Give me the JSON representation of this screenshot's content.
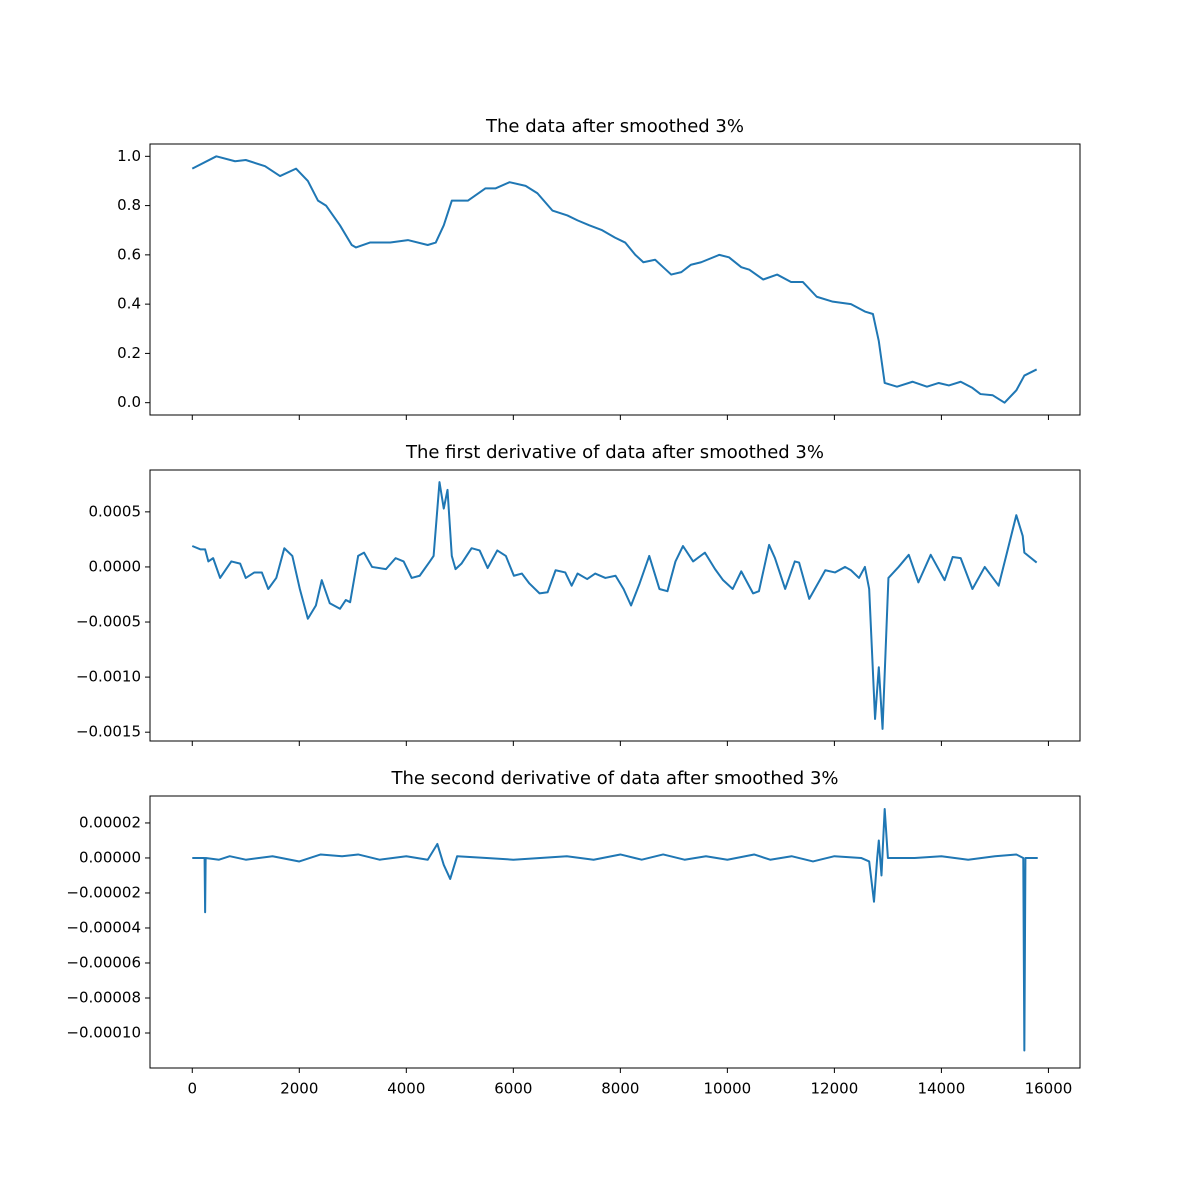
{
  "chart_data": [
    {
      "type": "line",
      "title": "The data after smoothed 3%",
      "color": "#1f77b4",
      "x": [
        0,
        450,
        800,
        1000,
        1360,
        1640,
        1940,
        2160,
        2350,
        2500,
        2760,
        2980,
        3060,
        3320,
        3700,
        4030,
        4400,
        4550,
        4700,
        4850,
        5150,
        5480,
        5670,
        5930,
        6230,
        6450,
        6730,
        7010,
        7200,
        7420,
        7660,
        7900,
        8090,
        8280,
        8430,
        8650,
        8800,
        8950,
        9140,
        9320,
        9510,
        9850,
        10030,
        10260,
        10410,
        10670,
        10930,
        11190,
        11410,
        11670,
        11970,
        12310,
        12570,
        12720,
        12830,
        12940,
        13170,
        13460,
        13730,
        13950,
        14140,
        14360,
        14580,
        14730,
        14960,
        15180,
        15400,
        15550,
        15780
      ],
      "values": [
        0.95,
        1.0,
        0.98,
        0.985,
        0.96,
        0.92,
        0.95,
        0.9,
        0.82,
        0.8,
        0.72,
        0.64,
        0.63,
        0.65,
        0.65,
        0.66,
        0.64,
        0.65,
        0.72,
        0.82,
        0.82,
        0.87,
        0.87,
        0.895,
        0.88,
        0.85,
        0.78,
        0.76,
        0.74,
        0.72,
        0.7,
        0.67,
        0.65,
        0.6,
        0.57,
        0.58,
        0.55,
        0.52,
        0.53,
        0.56,
        0.57,
        0.6,
        0.59,
        0.55,
        0.54,
        0.5,
        0.52,
        0.49,
        0.49,
        0.43,
        0.41,
        0.4,
        0.37,
        0.36,
        0.25,
        0.08,
        0.065,
        0.085,
        0.065,
        0.08,
        0.07,
        0.085,
        0.06,
        0.035,
        0.03,
        0.0,
        0.05,
        0.11,
        0.135
      ],
      "xlim": [
        -790,
        16590
      ],
      "xticks": [
        0,
        2000,
        4000,
        6000,
        8000,
        10000,
        12000,
        14000,
        16000
      ],
      "ylim": [
        -0.05,
        1.05
      ],
      "yticks": [
        {
          "value": 0,
          "label": "0.0"
        },
        {
          "value": 0.2,
          "label": "0.2"
        },
        {
          "value": 0.4,
          "label": "0.4"
        },
        {
          "value": 0.6,
          "label": "0.6"
        },
        {
          "value": 0.8,
          "label": "0.8"
        },
        {
          "value": 1,
          "label": "1.0"
        }
      ]
    },
    {
      "type": "line",
      "title": "The first derivative of data after smoothed 3%",
      "color": "#1f77b4",
      "x": [
        0,
        150,
        240,
        300,
        390,
        520,
        730,
        895,
        1000,
        1160,
        1300,
        1420,
        1570,
        1720,
        1870,
        2010,
        2160,
        2310,
        2420,
        2570,
        2760,
        2870,
        2950,
        3100,
        3210,
        3360,
        3620,
        3800,
        3950,
        4100,
        4250,
        4440,
        4510,
        4620,
        4700,
        4770,
        4850,
        4920,
        5030,
        5220,
        5370,
        5520,
        5700,
        5860,
        6010,
        6160,
        6300,
        6490,
        6640,
        6790,
        6970,
        7090,
        7200,
        7380,
        7530,
        7720,
        7910,
        8060,
        8200,
        8360,
        8540,
        8730,
        8880,
        9030,
        9170,
        9360,
        9580,
        9770,
        9920,
        10100,
        10260,
        10480,
        10590,
        10780,
        10890,
        11080,
        11260,
        11340,
        11530,
        11750,
        11830,
        12010,
        12200,
        12310,
        12460,
        12570,
        12650,
        12760,
        12830,
        12900,
        13010,
        13200,
        13390,
        13570,
        13800,
        14060,
        14210,
        14360,
        14580,
        14810,
        15070,
        15220,
        15400,
        15520,
        15550,
        15780
      ],
      "values": [
        0.00019,
        0.00016,
        0.00016,
        5e-05,
        8e-05,
        -0.0001,
        5e-05,
        3e-05,
        -0.0001,
        -5e-05,
        -5e-05,
        -0.0002,
        -0.0001,
        0.00017,
        0.0001,
        -0.0002,
        -0.00047,
        -0.00035,
        -0.00012,
        -0.00033,
        -0.00038,
        -0.0003,
        -0.00032,
        0.0001,
        0.00013,
        0.0,
        -2e-05,
        8e-05,
        5e-05,
        -0.0001,
        -8e-05,
        5e-05,
        0.0001,
        0.00077,
        0.00053,
        0.0007,
        0.0001,
        -2e-05,
        3e-05,
        0.00017,
        0.00015,
        -1e-05,
        0.00015,
        0.0001,
        -8e-05,
        -6e-05,
        -0.00015,
        -0.00024,
        -0.00023,
        -3e-05,
        -5e-05,
        -0.00017,
        -6e-05,
        -0.00011,
        -6e-05,
        -0.0001,
        -8e-05,
        -0.0002,
        -0.00035,
        -0.00015,
        0.0001,
        -0.0002,
        -0.00022,
        5e-05,
        0.00019,
        5e-05,
        0.00013,
        -2e-05,
        -0.00012,
        -0.0002,
        -4e-05,
        -0.00024,
        -0.00022,
        0.0002,
        8e-05,
        -0.0002,
        5e-05,
        4e-05,
        -0.00029,
        -0.0001,
        -3e-05,
        -5e-05,
        0.0,
        -3e-05,
        -0.0001,
        0.0,
        -0.0002,
        -0.00138,
        -0.00091,
        -0.00147,
        -0.0001,
        0.0,
        0.00011,
        -0.00014,
        0.00011,
        -0.00012,
        9e-05,
        8e-05,
        -0.0002,
        0.0,
        -0.00017,
        0.00012,
        0.00047,
        0.00028,
        0.00013,
        4e-05
      ],
      "xlim": [
        -790,
        16590
      ],
      "xticks": [
        0,
        2000,
        4000,
        6000,
        8000,
        10000,
        12000,
        14000,
        16000
      ],
      "ylim": [
        -0.00158,
        0.00088
      ],
      "yticks": [
        {
          "value": -0.0015,
          "label": "−0.0015"
        },
        {
          "value": -0.001,
          "label": "−0.0010"
        },
        {
          "value": -0.0005,
          "label": "−0.0005"
        },
        {
          "value": 0,
          "label": "0.0000"
        },
        {
          "value": 0.0005,
          "label": "0.0005"
        }
      ]
    },
    {
      "type": "line",
      "title": "The second derivative of data after smoothed 3%",
      "color": "#1f77b4",
      "x": [
        0,
        200,
        230,
        240,
        250,
        500,
        700,
        1000,
        1500,
        2000,
        2400,
        2800,
        3100,
        3500,
        4000,
        4400,
        4580,
        4700,
        4820,
        4950,
        5500,
        6000,
        6500,
        7000,
        7500,
        8000,
        8400,
        8800,
        9200,
        9600,
        10000,
        10500,
        10800,
        11200,
        11600,
        12000,
        12500,
        12650,
        12740,
        12800,
        12830,
        12880,
        12940,
        13000,
        13500,
        14000,
        14500,
        15000,
        15400,
        15530,
        15550,
        15570,
        15800
      ],
      "values": [
        0,
        0,
        0,
        -3.1e-05,
        0,
        -1e-06,
        1e-06,
        -1e-06,
        1e-06,
        -2e-06,
        2e-06,
        1e-06,
        2e-06,
        -1e-06,
        1e-06,
        -1e-06,
        8e-06,
        -4e-06,
        -1.2e-05,
        1e-06,
        0,
        -1e-06,
        0,
        1e-06,
        -1e-06,
        2e-06,
        -1e-06,
        2e-06,
        -1e-06,
        1e-06,
        -1e-06,
        2e-06,
        -1e-06,
        1e-06,
        -2e-06,
        1e-06,
        0,
        -2e-06,
        -2.5e-05,
        0,
        1e-05,
        -1e-05,
        2.8e-05,
        0,
        0,
        1e-06,
        -1e-06,
        1e-06,
        2e-06,
        0,
        -0.00011,
        0,
        0
      ],
      "xlim": [
        -790,
        16590
      ],
      "xticks": [
        {
          "value": 0,
          "label": "0"
        },
        {
          "value": 2000,
          "label": "2000"
        },
        {
          "value": 4000,
          "label": "4000"
        },
        {
          "value": 6000,
          "label": "6000"
        },
        {
          "value": 8000,
          "label": "8000"
        },
        {
          "value": 10000,
          "label": "10000"
        },
        {
          "value": 12000,
          "label": "12000"
        },
        {
          "value": 14000,
          "label": "14000"
        },
        {
          "value": 16000,
          "label": "16000"
        }
      ],
      "ylim": [
        -0.00012,
        3.54e-05
      ],
      "yticks": [
        {
          "value": -0.0001,
          "label": "−0.00010"
        },
        {
          "value": -8e-05,
          "label": "−0.00008"
        },
        {
          "value": -6e-05,
          "label": "−0.00006"
        },
        {
          "value": -4e-05,
          "label": "−0.00004"
        },
        {
          "value": -2e-05,
          "label": "−0.00002"
        },
        {
          "value": 0,
          "label": "0.00000"
        },
        {
          "value": 2e-05,
          "label": "0.00002"
        }
      ]
    }
  ]
}
